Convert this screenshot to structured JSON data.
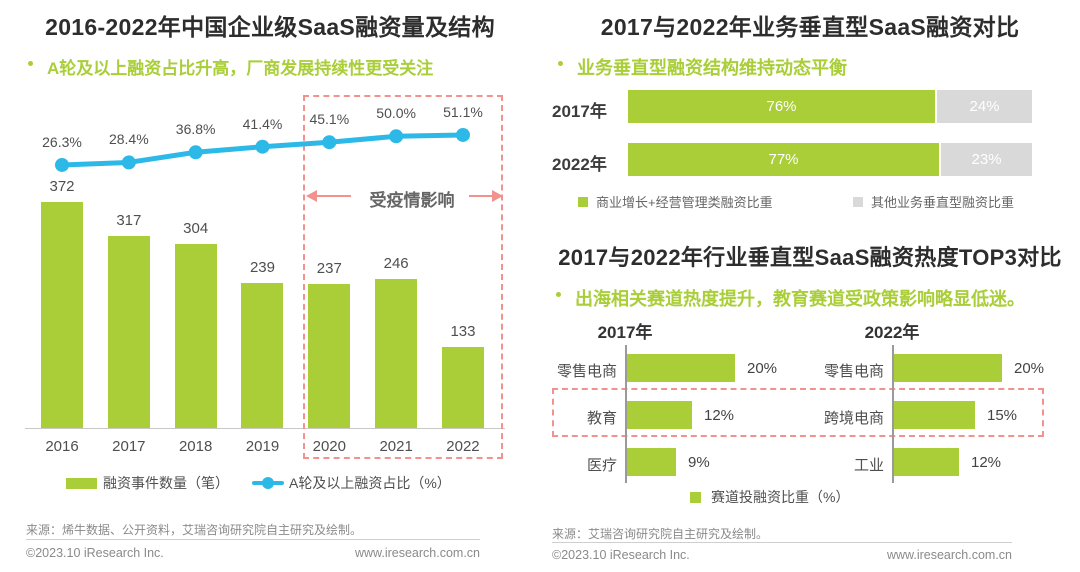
{
  "colors": {
    "green": "#a9ce38",
    "blue": "#2db9e7",
    "pink": "#f2928e",
    "gray": "#d9d9d9"
  },
  "left_chart": {
    "title": "2016-2022年中国企业级SaaS融资量及结构",
    "subtitle": "A轮及以上融资占比升高，厂商发展持续性更受关注",
    "source": "来源：烯牛数据、公开资料，艾瑞咨询研究院自主研究及绘制。",
    "chart_data": {
      "type": "bar+line",
      "categories": [
        "2016",
        "2017",
        "2018",
        "2019",
        "2020",
        "2021",
        "2022"
      ],
      "series": [
        {
          "name": "融资事件数量（笔）",
          "type": "bar",
          "values": [
            372,
            317,
            304,
            239,
            237,
            246,
            133
          ]
        },
        {
          "name": "A轮及以上融资占比（%）",
          "type": "line",
          "unit": "%",
          "values": [
            26.3,
            28.4,
            36.8,
            41.4,
            45.1,
            50.0,
            51.1
          ]
        }
      ],
      "annotation": {
        "text": "受疫情影响",
        "applies_to": [
          "2020",
          "2021",
          "2022"
        ]
      }
    }
  },
  "top_right_chart": {
    "title": "2017与2022年业务垂直型SaaS融资对比",
    "subtitle": "业务垂直型融资结构维持动态平衡",
    "chart_data": {
      "type": "bar",
      "orientation": "horizontal",
      "stacked": true,
      "unit": "%",
      "categories": [
        "2017年",
        "2022年"
      ],
      "series": [
        {
          "name": "商业增长+经营管理类融资比重",
          "values": [
            76,
            77
          ]
        },
        {
          "name": "其他业务垂直型融资比重",
          "values": [
            24,
            23
          ]
        }
      ]
    }
  },
  "bottom_right_chart": {
    "title": "2017与2022年行业垂直型SaaS融资热度TOP3对比",
    "subtitle": "出海相关赛道热度提升，教育赛道受政策影响略显低迷。",
    "source": "来源：艾瑞咨询研究院自主研究及绘制。",
    "chart_data": {
      "type": "bar",
      "orientation": "horizontal",
      "unit": "%",
      "legend_label": "赛道投融资比重（%）",
      "groups": [
        {
          "year": "2017年",
          "items": [
            {
              "label": "零售电商",
              "value": 20
            },
            {
              "label": "教育",
              "value": 12
            },
            {
              "label": "医疗",
              "value": 9
            }
          ]
        },
        {
          "year": "2022年",
          "items": [
            {
              "label": "零售电商",
              "value": 20
            },
            {
              "label": "跨境电商",
              "value": 15
            },
            {
              "label": "工业",
              "value": 12
            }
          ]
        }
      ],
      "highlight_row_index": 1
    }
  },
  "footer": {
    "copyright": "©2023.10 iResearch Inc.",
    "website": "www.iresearch.com.cn"
  }
}
